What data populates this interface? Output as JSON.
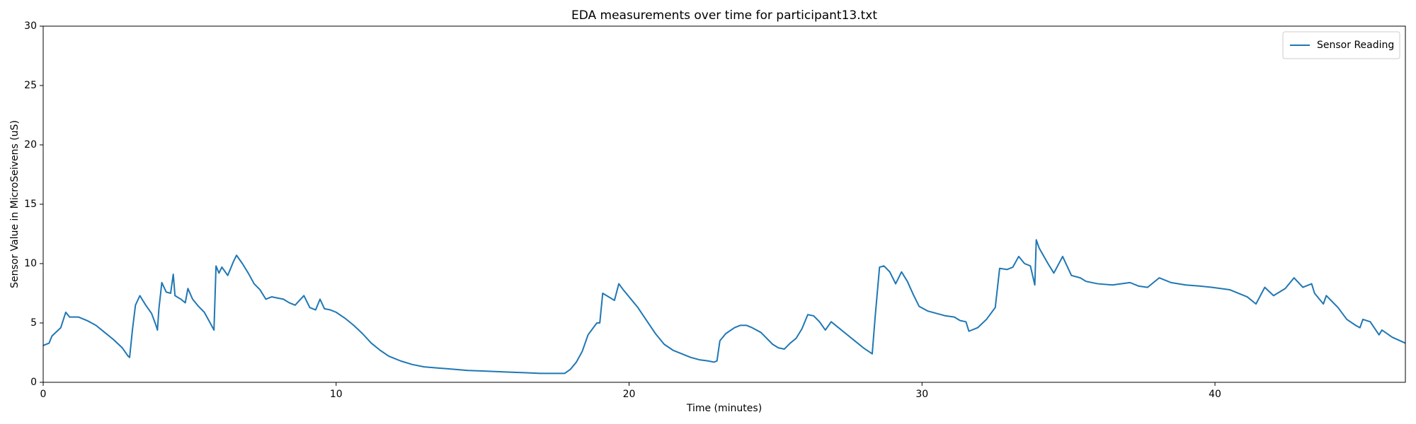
{
  "chart_data": {
    "type": "line",
    "title": "EDA measurements over time for participant13.txt",
    "x_label": "Time (minutes)",
    "y_label": "Sensor Value in MicroSeivens (uS)",
    "xlim": [
      0,
      46.5
    ],
    "ylim": [
      0,
      30
    ],
    "xticks": [
      0,
      10,
      20,
      30,
      40
    ],
    "yticks": [
      0,
      5,
      10,
      15,
      20,
      25,
      30
    ],
    "grid": false,
    "legend": "upper right",
    "x": [
      0,
      0.2,
      0.3,
      0.6,
      0.77,
      0.9,
      1.2,
      1.5,
      1.8,
      2.1,
      2.4,
      2.7,
      2.9,
      2.95,
      3.05,
      3.15,
      3.3,
      3.5,
      3.7,
      3.85,
      3.9,
      3.95,
      4.05,
      4.2,
      4.35,
      4.44,
      4.5,
      4.7,
      4.85,
      4.94,
      5.1,
      5.3,
      5.5,
      5.7,
      5.83,
      5.9,
      6.0,
      6.1,
      6.3,
      6.5,
      6.6,
      6.8,
      7.0,
      7.2,
      7.4,
      7.6,
      7.8,
      8.0,
      8.2,
      8.4,
      8.6,
      8.9,
      9.1,
      9.3,
      9.45,
      9.6,
      9.8,
      10.0,
      10.3,
      10.6,
      10.9,
      11.2,
      11.5,
      11.8,
      12.2,
      12.6,
      13.0,
      13.5,
      14.0,
      14.5,
      15.0,
      15.5,
      16.0,
      16.5,
      17.0,
      17.5,
      17.8,
      18.0,
      18.2,
      18.4,
      18.6,
      18.9,
      19.0,
      19.1,
      19.3,
      19.5,
      19.65,
      19.8,
      20.0,
      20.3,
      20.6,
      20.9,
      21.2,
      21.5,
      21.8,
      22.1,
      22.4,
      22.7,
      22.9,
      23.0,
      23.1,
      23.3,
      23.6,
      23.8,
      24.0,
      24.2,
      24.5,
      24.7,
      24.9,
      25.1,
      25.3,
      25.5,
      25.7,
      25.9,
      26.1,
      26.3,
      26.5,
      26.7,
      26.9,
      27.1,
      27.4,
      27.7,
      28.0,
      28.3,
      28.4,
      28.55,
      28.7,
      28.9,
      29.1,
      29.3,
      29.5,
      29.7,
      29.9,
      30.2,
      30.5,
      30.8,
      31.1,
      31.3,
      31.5,
      31.6,
      31.9,
      32.2,
      32.5,
      32.65,
      32.9,
      33.1,
      33.3,
      33.5,
      33.7,
      33.85,
      33.9,
      34.0,
      34.3,
      34.5,
      34.8,
      35.1,
      35.4,
      35.6,
      36.0,
      36.5,
      37.1,
      37.4,
      37.7,
      38.1,
      38.5,
      39.0,
      39.5,
      39.9,
      40.5,
      41.1,
      41.4,
      41.7,
      42.0,
      42.4,
      42.7,
      43.0,
      43.3,
      43.4,
      43.7,
      43.8,
      44.0,
      44.2,
      44.5,
      44.8,
      44.95,
      45.05,
      45.3,
      45.6,
      45.7,
      46.05,
      46.5
    ],
    "series": [
      {
        "name": "Sensor Reading",
        "color": "#1f77b4",
        "values": [
          3.1,
          3.3,
          3.9,
          4.6,
          5.9,
          5.5,
          5.5,
          5.2,
          4.8,
          4.2,
          3.6,
          2.9,
          2.2,
          2.1,
          4.5,
          6.5,
          7.3,
          6.5,
          5.8,
          4.8,
          4.4,
          6.2,
          8.4,
          7.6,
          7.5,
          9.1,
          7.3,
          7.0,
          6.7,
          7.9,
          7.0,
          6.4,
          5.9,
          5.0,
          4.4,
          9.8,
          9.2,
          9.7,
          9.0,
          10.2,
          10.7,
          10.0,
          9.2,
          8.3,
          7.8,
          7.0,
          7.2,
          7.1,
          7.0,
          6.7,
          6.5,
          7.3,
          6.3,
          6.1,
          7.0,
          6.2,
          6.1,
          5.9,
          5.4,
          4.8,
          4.1,
          3.3,
          2.7,
          2.2,
          1.8,
          1.5,
          1.3,
          1.2,
          1.1,
          1.0,
          0.95,
          0.9,
          0.85,
          0.8,
          0.75,
          0.75,
          0.75,
          1.1,
          1.7,
          2.6,
          4.0,
          5.0,
          5.0,
          7.5,
          7.2,
          6.9,
          8.3,
          7.8,
          7.2,
          6.3,
          5.2,
          4.1,
          3.2,
          2.7,
          2.4,
          2.1,
          1.9,
          1.8,
          1.7,
          1.8,
          3.5,
          4.1,
          4.6,
          4.8,
          4.8,
          4.6,
          4.2,
          3.7,
          3.2,
          2.9,
          2.8,
          3.3,
          3.7,
          4.5,
          5.7,
          5.6,
          5.1,
          4.4,
          5.1,
          4.7,
          4.1,
          3.5,
          2.9,
          2.4,
          5.5,
          9.7,
          9.8,
          9.3,
          8.3,
          9.3,
          8.5,
          7.4,
          6.4,
          6.0,
          5.8,
          5.6,
          5.5,
          5.2,
          5.1,
          4.3,
          4.6,
          5.3,
          6.3,
          9.6,
          9.5,
          9.7,
          10.6,
          10.0,
          9.8,
          8.2,
          12.0,
          11.3,
          10.0,
          9.2,
          10.6,
          9.0,
          8.8,
          8.5,
          8.3,
          8.2,
          8.4,
          8.1,
          8.0,
          8.8,
          8.4,
          8.2,
          8.1,
          8.0,
          7.8,
          7.2,
          6.6,
          8.0,
          7.3,
          7.9,
          8.8,
          8.0,
          8.3,
          7.5,
          6.6,
          7.3,
          6.8,
          6.3,
          5.3,
          4.8,
          4.6,
          5.3,
          5.1,
          4.0,
          4.4,
          3.8,
          3.3
        ]
      }
    ]
  }
}
